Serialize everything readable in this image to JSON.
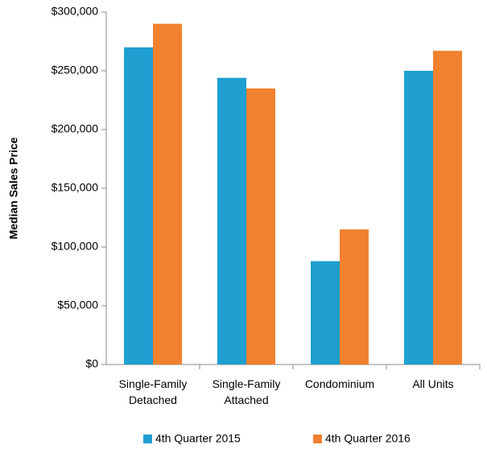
{
  "chart_data": {
    "type": "bar",
    "y_label": "Median Sales Price",
    "categories": [
      "Single-Family Detached",
      "Single-Family Attached",
      "Condominium",
      "All Units"
    ],
    "series": [
      {
        "name": "4th Quarter 2015",
        "color": "#1f9fd0",
        "values": [
          270000,
          244000,
          88000,
          250000
        ]
      },
      {
        "name": "4th Quarter 2016",
        "color": "#f0812f",
        "values": [
          290000,
          235000,
          115000,
          267000
        ]
      }
    ],
    "ylim": [
      0,
      300000
    ],
    "yticks": [
      {
        "value": 0,
        "label": "$0"
      },
      {
        "value": 50000,
        "label": "$50,000"
      },
      {
        "value": 100000,
        "label": "$100,000"
      },
      {
        "value": 150000,
        "label": "$150,000"
      },
      {
        "value": 200000,
        "label": "$200,000"
      },
      {
        "value": 250000,
        "label": "$250,000"
      },
      {
        "value": 300000,
        "label": "$300,000"
      }
    ],
    "grid": false,
    "legend": "bottom"
  }
}
